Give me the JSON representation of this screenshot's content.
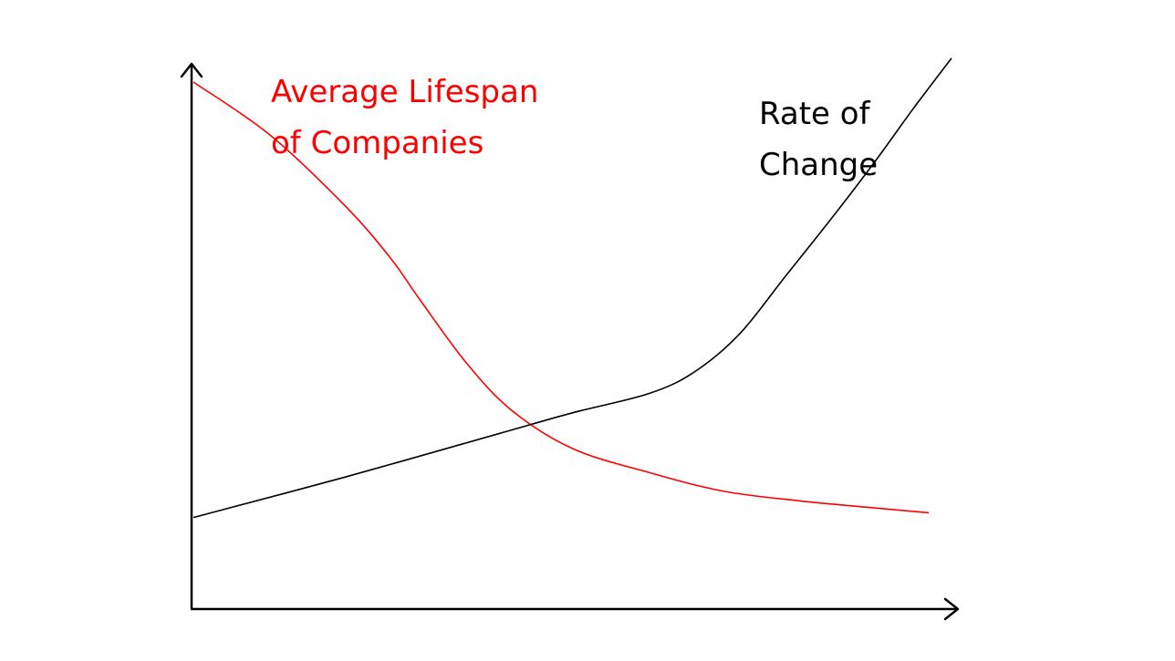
{
  "chart_data": {
    "type": "line",
    "title": "",
    "xlabel": "",
    "ylabel": "",
    "xlim": [
      0,
      100
    ],
    "ylim": [
      0,
      100
    ],
    "axis_ticks": false,
    "grid": false,
    "legend": "none",
    "series": [
      {
        "name": "Average Lifespan of Companies",
        "label_lines": [
          "Average Lifespan",
          "of Companies"
        ],
        "color": "#ff0000",
        "x": [
          0,
          10,
          20,
          26,
          30,
          36,
          42,
          50,
          60,
          70,
          80,
          90,
          97
        ],
        "y": [
          100,
          89,
          74,
          63,
          54,
          41,
          31,
          23,
          18,
          14,
          12,
          10.5,
          9.5
        ]
      },
      {
        "name": "Rate of Change",
        "label_lines": [
          "Rate of",
          "Change"
        ],
        "color": "#000000",
        "x": [
          0,
          20,
          40,
          50,
          60,
          66,
          72,
          78,
          84,
          90,
          95,
          100
        ],
        "y": [
          8.5,
          17,
          26,
          30.5,
          34.5,
          39,
          47,
          59,
          71,
          83.5,
          94.5,
          105
        ]
      }
    ]
  }
}
